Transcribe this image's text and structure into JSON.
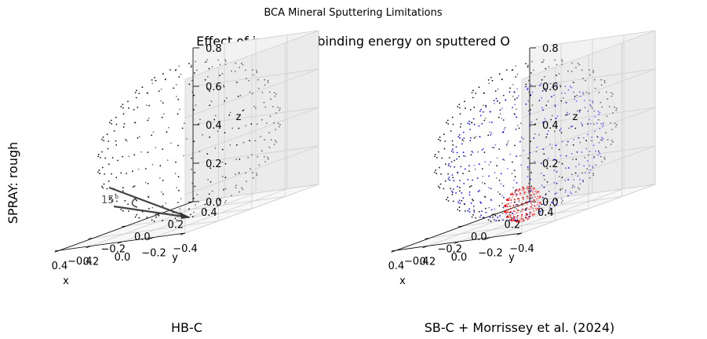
{
  "figure": {
    "suptitle": "BCA Mineral Sputtering Limitations",
    "subtitle": "Effect of increased binding energy on sputtered O",
    "row_label": "SPRAY: rough"
  },
  "chart_data": [
    {
      "type": "scatter3d",
      "title": "HB-C",
      "xlabel": "x",
      "ylabel": "y",
      "zlabel": "z",
      "xlim": [
        -0.4,
        0.4
      ],
      "ylim": [
        -0.4,
        0.4
      ],
      "zlim": [
        0,
        0.8
      ],
      "x_ticks": [
        "-0.4",
        "-0.2",
        "0.0",
        "0.2",
        "0.4"
      ],
      "y_ticks": [
        "-0.4",
        "-0.2",
        "0.0",
        "0.2",
        "0.4"
      ],
      "z_ticks": [
        "0.0",
        "0.2",
        "0.4",
        "0.6",
        "0.8"
      ],
      "incidence_angle_label": "15°",
      "series": [
        {
          "color": "#000000",
          "shape": "sphere",
          "center": [
            0,
            0,
            0.4
          ],
          "radius": 0.4
        }
      ]
    },
    {
      "type": "scatter3d",
      "title": "SB-C + Morrissey et al. (2024)",
      "xlabel": "x",
      "ylabel": "y",
      "zlabel": "z",
      "xlim": [
        -0.4,
        0.4
      ],
      "ylim": [
        -0.4,
        0.4
      ],
      "zlim": [
        0,
        0.8
      ],
      "x_ticks": [
        "-0.4",
        "-0.2",
        "0.0",
        "0.2",
        "0.4"
      ],
      "y_ticks": [
        "-0.4",
        "-0.2",
        "0.0",
        "0.2",
        "0.4"
      ],
      "z_ticks": [
        "0.0",
        "0.2",
        "0.4",
        "0.6",
        "0.8"
      ],
      "series": [
        {
          "color": "#000000",
          "shape": "sphere",
          "center": [
            0,
            0,
            0.4
          ],
          "radius": 0.4
        },
        {
          "color": "#0000ff",
          "shape": "sphere",
          "center": [
            0,
            0,
            0.34
          ],
          "radius": 0.34
        },
        {
          "color": "#ff0000",
          "shape": "lobe",
          "center": [
            0.02,
            0,
            0.07
          ],
          "radius": 0.08
        }
      ]
    }
  ],
  "colors": {
    "grid": "#cfcfcf",
    "pane_back": "#f2f2f2",
    "pane_side": "#ebebeb",
    "pane_floor": "#f7f7f7"
  }
}
